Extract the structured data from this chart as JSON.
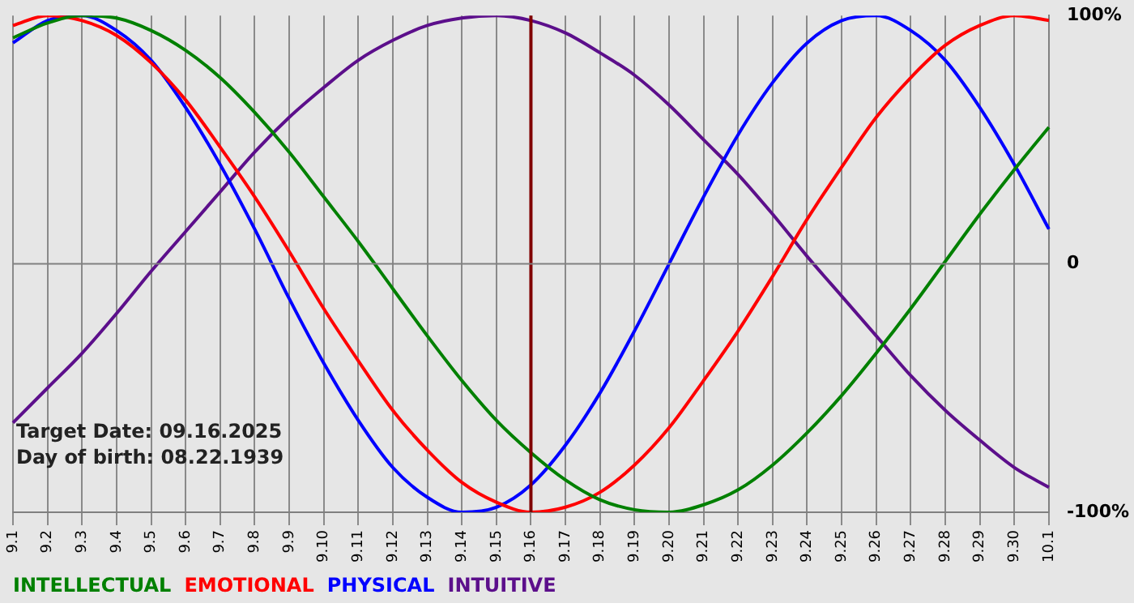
{
  "chart_data": {
    "type": "line",
    "categories": [
      "9.1",
      "9.2",
      "9.3",
      "9.4",
      "9.5",
      "9.6",
      "9.7",
      "9.8",
      "9.9",
      "9.10",
      "9.11",
      "9.12",
      "9.13",
      "9.14",
      "9.15",
      "9.16",
      "9.17",
      "9.18",
      "9.19",
      "9.20",
      "9.21",
      "9.22",
      "9.23",
      "9.24",
      "9.25",
      "9.26",
      "9.27",
      "9.28",
      "9.29",
      "9.30",
      "10.1"
    ],
    "series": [
      {
        "name": "INTELLECTUAL",
        "color": "#008000",
        "values": [
          91,
          97,
          100,
          99,
          94,
          86,
          75,
          61,
          45,
          27,
          9,
          -10,
          -29,
          -47,
          -63,
          -76,
          -87,
          -95,
          -99,
          -100,
          -97,
          -91,
          -81,
          -68,
          -53,
          -36,
          -18,
          1,
          20,
          38,
          55
        ]
      },
      {
        "name": "EMOTIONAL",
        "color": "#ff0000",
        "values": [
          96,
          100,
          98,
          92,
          81,
          66,
          47,
          27,
          5,
          -18,
          -39,
          -59,
          -75,
          -88,
          -96,
          -100,
          -98,
          -92,
          -81,
          -66,
          -47,
          -27,
          -5,
          18,
          39,
          59,
          75,
          88,
          96,
          100,
          98
        ]
      },
      {
        "name": "PHYSICAL",
        "color": "#0000ff",
        "values": [
          89,
          98,
          100,
          94,
          82,
          63,
          40,
          14,
          -14,
          -40,
          -63,
          -82,
          -94,
          -100,
          -98,
          -89,
          -73,
          -52,
          -27,
          0,
          27,
          52,
          73,
          89,
          98,
          100,
          94,
          82,
          63,
          40,
          14
        ]
      },
      {
        "name": "INTUITIVE",
        "color": "#5c0f8b",
        "values": [
          -64,
          -50,
          -36,
          -20,
          -3,
          13,
          29,
          45,
          59,
          71,
          82,
          90,
          96,
          99,
          100,
          98,
          93,
          85,
          76,
          64,
          50,
          36,
          20,
          3,
          -13,
          -29,
          -45,
          -59,
          -71,
          -82,
          -90
        ]
      }
    ],
    "ylim": [
      -100,
      100
    ],
    "yticks": [
      {
        "value": -100,
        "label": "-100%"
      },
      0,
      {
        "value": 100,
        "label": "100%"
      }
    ],
    "ref_lines": [
      {
        "axis": "x",
        "value": "9.16",
        "color": "#800000"
      },
      {
        "axis": "y",
        "value": 0,
        "color": "#808080"
      }
    ],
    "annotations": [
      "Target Date: 09.16.2025",
      "Day of birth: 08.22.1939"
    ],
    "grid": "x",
    "legend": "bottom left",
    "marker": "none",
    "line_style": "solid"
  }
}
